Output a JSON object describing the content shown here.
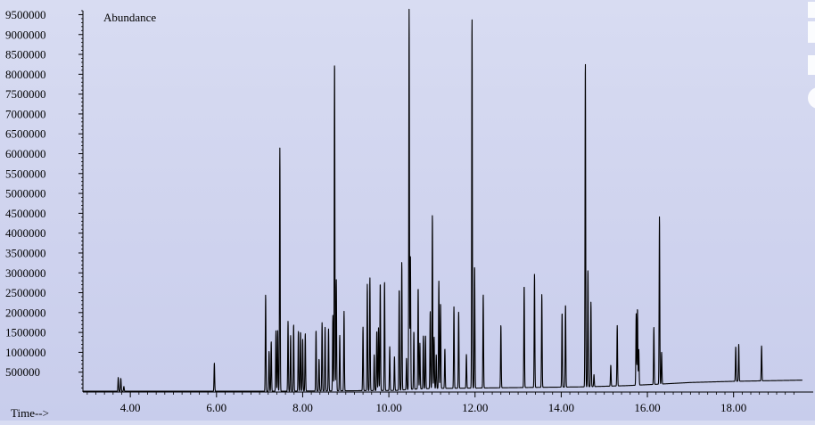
{
  "chart_data": {
    "type": "line",
    "title": "",
    "ylabel": "Abundance",
    "xlabel": "Time-->",
    "xlim": [
      2.9,
      19.6
    ],
    "ylim": [
      0,
      9600000
    ],
    "x_ticks": [
      4.0,
      6.0,
      8.0,
      10.0,
      12.0,
      14.0,
      16.0,
      18.0
    ],
    "x_tick_labels": [
      "4.00",
      "6.00",
      "8.00",
      "10.00",
      "12.00",
      "14.00",
      "16.00",
      "18.00"
    ],
    "y_ticks": [
      500000,
      1000000,
      1500000,
      2000000,
      2500000,
      3000000,
      3500000,
      4000000,
      4500000,
      5000000,
      5500000,
      6000000,
      6500000,
      7000000,
      7500000,
      8000000,
      8500000,
      9000000,
      9500000
    ],
    "y_tick_labels": [
      "500000",
      "1000000",
      "1500000",
      "2000000",
      "2500000",
      "3000000",
      "3500000",
      "4000000",
      "4500000",
      "5000000",
      "5500000",
      "6000000",
      "6500000",
      "7000000",
      "7500000",
      "8000000",
      "8500000",
      "9000000",
      "9500000"
    ],
    "grid": false,
    "baseline": [
      [
        2.9,
        20000
      ],
      [
        7.2,
        20000
      ],
      [
        10.2,
        40000
      ],
      [
        10.5,
        70000
      ],
      [
        11.0,
        90000
      ],
      [
        12.0,
        100000
      ],
      [
        14.5,
        130000
      ],
      [
        15.5,
        160000
      ],
      [
        16.3,
        200000
      ],
      [
        17.0,
        240000
      ],
      [
        18.0,
        270000
      ],
      [
        19.6,
        300000
      ]
    ],
    "peaks": [
      [
        3.72,
        350000
      ],
      [
        3.78,
        320000
      ],
      [
        3.85,
        120000
      ],
      [
        5.95,
        710000
      ],
      [
        7.14,
        2430000
      ],
      [
        7.22,
        1000000
      ],
      [
        7.27,
        1250000
      ],
      [
        7.38,
        1520000
      ],
      [
        7.42,
        1550000
      ],
      [
        7.47,
        6120000
      ],
      [
        7.66,
        1760000
      ],
      [
        7.72,
        1400000
      ],
      [
        7.79,
        1680000
      ],
      [
        7.9,
        1500000
      ],
      [
        7.95,
        1500000
      ],
      [
        8.0,
        1300000
      ],
      [
        8.06,
        1450000
      ],
      [
        8.31,
        1530000
      ],
      [
        8.38,
        800000
      ],
      [
        8.45,
        1720000
      ],
      [
        8.52,
        1600000
      ],
      [
        8.6,
        1560000
      ],
      [
        8.7,
        1900000
      ],
      [
        8.74,
        8330000
      ],
      [
        8.78,
        2800000
      ],
      [
        8.86,
        1400000
      ],
      [
        8.96,
        2000000
      ],
      [
        9.4,
        1600000
      ],
      [
        9.5,
        2680000
      ],
      [
        9.56,
        2850000
      ],
      [
        9.66,
        900000
      ],
      [
        9.72,
        1500000
      ],
      [
        9.76,
        1580000
      ],
      [
        9.8,
        2720000
      ],
      [
        9.9,
        2750000
      ],
      [
        10.02,
        1100000
      ],
      [
        10.13,
        850000
      ],
      [
        10.24,
        2560000
      ],
      [
        10.3,
        3220000
      ],
      [
        10.41,
        800000
      ],
      [
        10.47,
        9580000
      ],
      [
        10.5,
        3400000
      ],
      [
        10.58,
        1450000
      ],
      [
        10.68,
        2560000
      ],
      [
        10.72,
        1150000
      ],
      [
        10.8,
        1330000
      ],
      [
        10.85,
        1350000
      ],
      [
        10.96,
        1950000
      ],
      [
        11.01,
        4380000
      ],
      [
        11.05,
        1300000
      ],
      [
        11.1,
        850000
      ],
      [
        11.16,
        2700000
      ],
      [
        11.2,
        2150000
      ],
      [
        11.3,
        1000000
      ],
      [
        11.51,
        2050000
      ],
      [
        11.62,
        1920000
      ],
      [
        11.8,
        850000
      ],
      [
        11.93,
        9330000
      ],
      [
        11.99,
        3080000
      ],
      [
        12.19,
        2360000
      ],
      [
        12.6,
        1580000
      ],
      [
        13.14,
        2580000
      ],
      [
        13.38,
        2860000
      ],
      [
        13.55,
        2340000
      ],
      [
        14.02,
        1880000
      ],
      [
        14.1,
        2080000
      ],
      [
        14.56,
        8200000
      ],
      [
        14.62,
        2950000
      ],
      [
        14.69,
        2130000
      ],
      [
        14.76,
        300000
      ],
      [
        15.15,
        530000
      ],
      [
        15.3,
        1520000
      ],
      [
        15.74,
        1800000
      ],
      [
        15.77,
        1930000
      ],
      [
        15.8,
        900000
      ],
      [
        16.15,
        1440000
      ],
      [
        16.28,
        4230000
      ],
      [
        16.33,
        800000
      ],
      [
        18.05,
        870000
      ],
      [
        18.12,
        930000
      ],
      [
        18.65,
        880000
      ]
    ],
    "series": [
      {
        "values_ref": "peaks",
        "color": "#000000"
      }
    ]
  }
}
